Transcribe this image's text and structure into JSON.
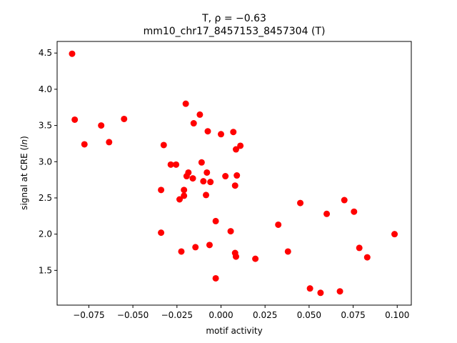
{
  "chart_data": {
    "type": "scatter",
    "title_line1": "T, ρ = −0.63",
    "title_line2": "mm10_chr17_8457153_8457304 (T)",
    "xlabel": "motif activity",
    "ylabel": "signal at CRE (ln)",
    "xlim": [
      -0.093,
      0.108
    ],
    "ylim": [
      1.02,
      4.66
    ],
    "xticks": [
      -0.075,
      -0.05,
      -0.025,
      0.0,
      0.025,
      0.05,
      0.075,
      0.1
    ],
    "xtick_labels": [
      "−0.075",
      "−0.050",
      "−0.025",
      "0.000",
      "0.025",
      "0.050",
      "0.075",
      "0.100"
    ],
    "yticks": [
      1.5,
      2.0,
      2.5,
      3.0,
      3.5,
      4.0,
      4.5
    ],
    "ytick_labels": [
      "1.5",
      "2.0",
      "2.5",
      "3.0",
      "3.5",
      "4.0",
      "4.5"
    ],
    "grid": false,
    "marker_color": "#ff0000",
    "points": [
      [
        -0.0845,
        4.49
      ],
      [
        -0.083,
        3.58
      ],
      [
        -0.0775,
        3.24
      ],
      [
        -0.068,
        3.5
      ],
      [
        -0.0635,
        3.27
      ],
      [
        -0.055,
        3.59
      ],
      [
        -0.034,
        2.61
      ],
      [
        -0.034,
        2.02
      ],
      [
        -0.0325,
        3.23
      ],
      [
        -0.0285,
        2.96
      ],
      [
        -0.0255,
        2.96
      ],
      [
        -0.0235,
        2.48
      ],
      [
        -0.0225,
        1.76
      ],
      [
        -0.021,
        2.61
      ],
      [
        -0.021,
        2.53
      ],
      [
        -0.02,
        3.8
      ],
      [
        -0.0195,
        2.8
      ],
      [
        -0.0185,
        2.85
      ],
      [
        -0.016,
        2.77
      ],
      [
        -0.0155,
        3.53
      ],
      [
        -0.0145,
        1.82
      ],
      [
        -0.012,
        3.65
      ],
      [
        -0.011,
        2.99
      ],
      [
        -0.01,
        2.73
      ],
      [
        -0.0085,
        2.54
      ],
      [
        -0.008,
        2.85
      ],
      [
        -0.0075,
        3.42
      ],
      [
        -0.0065,
        1.85
      ],
      [
        -0.006,
        2.72
      ],
      [
        -0.003,
        2.18
      ],
      [
        -0.003,
        1.39
      ],
      [
        0.0,
        3.38
      ],
      [
        0.0025,
        2.8
      ],
      [
        0.0055,
        2.04
      ],
      [
        0.007,
        3.41
      ],
      [
        0.008,
        2.67
      ],
      [
        0.008,
        1.74
      ],
      [
        0.0085,
        1.69
      ],
      [
        0.0085,
        3.17
      ],
      [
        0.009,
        2.81
      ],
      [
        0.011,
        3.22
      ],
      [
        0.0195,
        1.66
      ],
      [
        0.0325,
        2.13
      ],
      [
        0.038,
        1.76
      ],
      [
        0.045,
        2.43
      ],
      [
        0.0505,
        1.25
      ],
      [
        0.0565,
        1.19
      ],
      [
        0.06,
        2.28
      ],
      [
        0.0675,
        1.21
      ],
      [
        0.07,
        2.47
      ],
      [
        0.0755,
        2.31
      ],
      [
        0.0785,
        1.81
      ],
      [
        0.083,
        1.68
      ],
      [
        0.0985,
        2.0
      ]
    ]
  }
}
